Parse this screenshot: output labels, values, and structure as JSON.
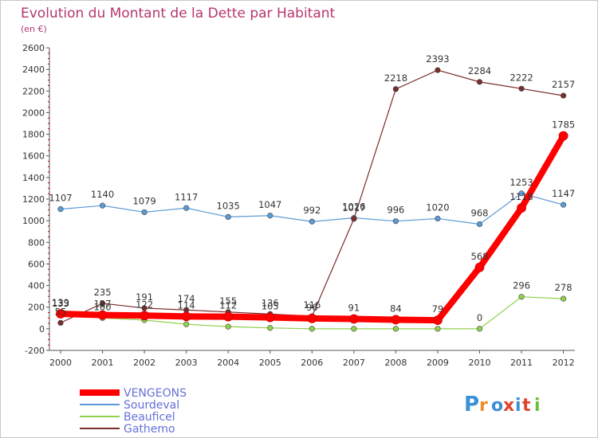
{
  "chart_data": {
    "type": "line",
    "title": "Evolution du Montant de la Dette par Habitant",
    "subtitle": "(en €)",
    "categories": [
      "2000",
      "2001",
      "2002",
      "2003",
      "2004",
      "2005",
      "2006",
      "2007",
      "2008",
      "2009",
      "2010",
      "2011",
      "2012"
    ],
    "ylim": [
      -200,
      2600
    ],
    "yticks": [
      -200,
      0,
      200,
      400,
      600,
      800,
      1000,
      1200,
      1400,
      1600,
      1800,
      2000,
      2200,
      2400,
      2600
    ],
    "grid": false,
    "legend_position": "bottom-left",
    "series": [
      {
        "name": "Sourdeval",
        "color": "#5b9bd5",
        "values": [
          1107,
          1140,
          1079,
          1117,
          1035,
          1047,
          992,
          1026,
          996,
          1020,
          968,
          1253,
          1147
        ],
        "labels": [
          "1107",
          "1140",
          "1079",
          "1117",
          "1035",
          "1047",
          "992",
          "1026",
          "996",
          "1020",
          "968",
          "1253",
          "1147"
        ]
      },
      {
        "name": "Beauficel",
        "color": "#92d050",
        "values": [
          133,
          100,
          80,
          42,
          20,
          8,
          0,
          0,
          0,
          0,
          0,
          296,
          278
        ],
        "labels": [
          "133",
          "100",
          "",
          "",
          "",
          "",
          "",
          "",
          "",
          "",
          "0",
          "296",
          "278"
        ]
      },
      {
        "name": "Gathemo",
        "color": "#7b2c2c",
        "values": [
          55,
          235,
          191,
          174,
          155,
          136,
          116,
          1017,
          2218,
          2393,
          2284,
          2222,
          2157
        ],
        "labels": [
          "55",
          "235",
          "191",
          "174",
          "155",
          "136",
          "116",
          "1017",
          "2218",
          "2393",
          "2284",
          "2222",
          "2157"
        ]
      },
      {
        "name": "VENGEONS",
        "color": "#ff0000",
        "values": [
          139,
          127,
          122,
          114,
          112,
          105,
          96,
          91,
          84,
          79,
          568,
          1118,
          1785
        ],
        "labels": [
          "139",
          "127",
          "122",
          "114",
          "112",
          "105",
          "96",
          "91",
          "84",
          "79",
          "568",
          "1118",
          "1785"
        ]
      }
    ],
    "legend": [
      "VENGEONS",
      "Sourdeval",
      "Beauficel",
      "Gathemo"
    ]
  },
  "logo": {
    "text": "Proxiti"
  }
}
